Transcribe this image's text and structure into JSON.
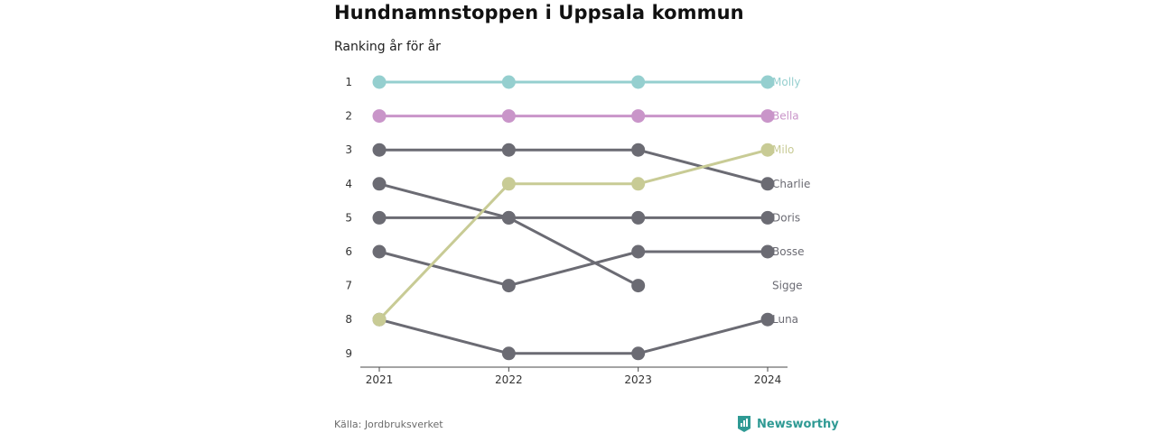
{
  "chart_data": {
    "type": "line",
    "title": "Hundnamnstoppen i Uppsala kommun",
    "subtitle": "Ranking år för år",
    "x": [
      "2021",
      "2022",
      "2023",
      "2024"
    ],
    "y_ticks": [
      "1",
      "2",
      "3",
      "4",
      "5",
      "6",
      "7",
      "8",
      "9"
    ],
    "ylim": [
      1,
      9
    ],
    "y_inverted": true,
    "series": [
      {
        "name": "Molly",
        "values": [
          1,
          1,
          1,
          1
        ],
        "color": "#95cfcf"
      },
      {
        "name": "Bella",
        "values": [
          2,
          2,
          2,
          2
        ],
        "color": "#c995c9"
      },
      {
        "name": "Charlie",
        "values": [
          3,
          3,
          3,
          4
        ],
        "color": "#6b6b73"
      },
      {
        "name": "Doris",
        "values": [
          5,
          5,
          5,
          5
        ],
        "color": "#6b6b73"
      },
      {
        "name": "Bosse",
        "values": [
          6,
          7,
          6,
          6
        ],
        "color": "#6b6b73"
      },
      {
        "name": "Sigge",
        "values": [
          4,
          5,
          7,
          null
        ],
        "color": "#6b6b73"
      },
      {
        "name": "Luna",
        "values": [
          8,
          9,
          9,
          8
        ],
        "color": "#6b6b73"
      },
      {
        "name": "Milo",
        "values": [
          8,
          4,
          4,
          3
        ],
        "color": "#c8cb95"
      }
    ],
    "end_labels": [
      {
        "name": "Molly",
        "rank": 1,
        "color": "#95cfcf"
      },
      {
        "name": "Bella",
        "rank": 2,
        "color": "#c995c9"
      },
      {
        "name": "Milo",
        "rank": 3,
        "color": "#c8cb95"
      },
      {
        "name": "Charlie",
        "rank": 4,
        "color": "#6b6b73"
      },
      {
        "name": "Doris",
        "rank": 5,
        "color": "#6b6b73"
      },
      {
        "name": "Bosse",
        "rank": 6,
        "color": "#6b6b73"
      },
      {
        "name": "Sigge",
        "rank": 7,
        "color": "#6b6b73"
      },
      {
        "name": "Luna",
        "rank": 8,
        "color": "#6b6b73"
      }
    ],
    "grid": false
  },
  "source": "Källa: Jordbruksverket",
  "brand": {
    "name": "Newsworthy",
    "icon": "newsworthy-logo-icon",
    "color": "#2f9a94"
  }
}
